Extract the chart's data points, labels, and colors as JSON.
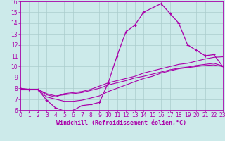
{
  "xlabel": "Windchill (Refroidissement éolien,°C)",
  "xlim": [
    0,
    23
  ],
  "ylim": [
    6,
    16
  ],
  "xticks": [
    0,
    1,
    2,
    3,
    4,
    5,
    6,
    7,
    8,
    9,
    10,
    11,
    12,
    13,
    14,
    15,
    16,
    17,
    18,
    19,
    20,
    21,
    22,
    23
  ],
  "yticks": [
    6,
    7,
    8,
    9,
    10,
    11,
    12,
    13,
    14,
    15,
    16
  ],
  "background_color": "#cceaea",
  "line_color": "#aa00aa",
  "grid_color": "#aacccc",
  "line1_x": [
    0,
    1,
    2,
    3,
    4,
    5,
    6,
    7,
    8,
    9,
    10,
    11,
    12,
    13,
    14,
    15,
    16,
    17,
    18,
    19,
    20,
    21,
    22,
    23
  ],
  "line1_y": [
    8.0,
    7.9,
    7.9,
    6.9,
    6.2,
    5.9,
    5.95,
    6.4,
    6.5,
    6.7,
    8.5,
    11.0,
    13.2,
    13.8,
    15.0,
    15.4,
    15.8,
    14.9,
    14.0,
    12.0,
    11.5,
    11.0,
    11.1,
    10.0
  ],
  "line2_x": [
    0,
    2,
    3,
    4,
    5,
    6,
    7,
    8,
    9,
    10,
    11,
    12,
    13,
    14,
    15,
    16,
    17,
    18,
    19,
    20,
    21,
    22,
    23
  ],
  "line2_y": [
    7.9,
    7.9,
    7.4,
    7.2,
    7.5,
    7.6,
    7.7,
    7.9,
    8.2,
    8.5,
    8.7,
    8.9,
    9.1,
    9.4,
    9.6,
    9.8,
    10.0,
    10.2,
    10.3,
    10.5,
    10.7,
    10.85,
    10.9
  ],
  "line3_x": [
    0,
    2,
    3,
    4,
    5,
    6,
    7,
    8,
    9,
    10,
    11,
    12,
    13,
    14,
    15,
    16,
    17,
    18,
    19,
    20,
    21,
    22,
    23
  ],
  "line3_y": [
    7.85,
    7.85,
    7.2,
    7.0,
    6.8,
    6.8,
    6.9,
    7.1,
    7.3,
    7.7,
    8.0,
    8.3,
    8.6,
    8.9,
    9.1,
    9.4,
    9.6,
    9.8,
    9.9,
    10.0,
    10.1,
    10.15,
    10.0
  ],
  "line4_x": [
    0,
    1,
    2,
    3,
    4,
    5,
    6,
    7,
    8,
    9,
    10,
    11,
    12,
    13,
    14,
    15,
    16,
    17,
    18,
    19,
    20,
    21,
    22,
    23
  ],
  "line4_y": [
    7.9,
    7.9,
    7.9,
    7.5,
    7.3,
    7.4,
    7.5,
    7.6,
    7.8,
    8.0,
    8.3,
    8.5,
    8.7,
    8.95,
    9.1,
    9.3,
    9.5,
    9.7,
    9.85,
    9.95,
    10.1,
    10.2,
    10.3,
    10.05
  ],
  "font_size_label": 6,
  "font_size_tick": 5.5
}
